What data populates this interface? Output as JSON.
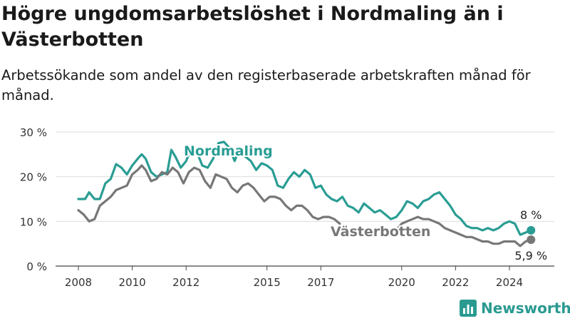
{
  "title": "Högre ungdomsarbetslöshet i Nordmaling än i Västerbotten",
  "subtitle": "Arbetssökande som andel av den registerbaserade arbetskraften månad för månad.",
  "logo_text": "Newsworthy",
  "chart_data": {
    "type": "line",
    "title": "Högre ungdomsarbetslöshet i Nordmaling än i Västerbotten",
    "subtitle": "Arbetssökande som andel av den registerbaserade arbetskraften månad för månad.",
    "xlabel": "",
    "ylabel": "",
    "ylim": [
      0,
      30
    ],
    "y_ticks": [
      {
        "value": 0,
        "label": "0 %"
      },
      {
        "value": 10,
        "label": "10 %"
      },
      {
        "value": 20,
        "label": "20 %"
      },
      {
        "value": 30,
        "label": "30 %"
      }
    ],
    "x_ticks": [
      2008,
      2010,
      2012,
      2015,
      2017,
      2020,
      2022,
      2024
    ],
    "grid": true,
    "colors": {
      "Nordmaling": "#2a9d94",
      "Västerbotten": "#777777"
    },
    "series": [
      {
        "name": "Nordmaling",
        "end_label": "8 %",
        "points": [
          [
            2008.0,
            15.0
          ],
          [
            2008.25,
            15.0
          ],
          [
            2008.4,
            16.5
          ],
          [
            2008.6,
            15.0
          ],
          [
            2008.8,
            15.0
          ],
          [
            2009.0,
            18.5
          ],
          [
            2009.2,
            19.5
          ],
          [
            2009.4,
            22.8
          ],
          [
            2009.6,
            22.0
          ],
          [
            2009.8,
            20.5
          ],
          [
            2010.0,
            22.5
          ],
          [
            2010.2,
            24.0
          ],
          [
            2010.35,
            25.0
          ],
          [
            2010.5,
            24.0
          ],
          [
            2010.7,
            21.0
          ],
          [
            2010.9,
            20.0
          ],
          [
            2011.1,
            20.5
          ],
          [
            2011.3,
            21.0
          ],
          [
            2011.45,
            26.0
          ],
          [
            2011.6,
            24.5
          ],
          [
            2011.8,
            22.0
          ],
          [
            2012.0,
            23.5
          ],
          [
            2012.2,
            26.5
          ],
          [
            2012.4,
            25.5
          ],
          [
            2012.6,
            22.5
          ],
          [
            2012.8,
            22.0
          ],
          [
            2013.0,
            24.0
          ],
          [
            2013.2,
            27.5
          ],
          [
            2013.4,
            27.8
          ],
          [
            2013.6,
            26.5
          ],
          [
            2013.8,
            23.5
          ],
          [
            2014.0,
            26.5
          ],
          [
            2014.2,
            24.5
          ],
          [
            2014.4,
            23.5
          ],
          [
            2014.6,
            21.5
          ],
          [
            2014.8,
            23.0
          ],
          [
            2015.0,
            22.5
          ],
          [
            2015.2,
            21.5
          ],
          [
            2015.4,
            18.0
          ],
          [
            2015.6,
            17.5
          ],
          [
            2015.8,
            19.5
          ],
          [
            2016.0,
            21.0
          ],
          [
            2016.2,
            20.0
          ],
          [
            2016.4,
            21.5
          ],
          [
            2016.6,
            20.5
          ],
          [
            2016.8,
            17.5
          ],
          [
            2017.0,
            18.0
          ],
          [
            2017.2,
            16.0
          ],
          [
            2017.4,
            15.0
          ],
          [
            2017.6,
            14.5
          ],
          [
            2017.8,
            15.5
          ],
          [
            2018.0,
            13.5
          ],
          [
            2018.2,
            13.0
          ],
          [
            2018.4,
            12.0
          ],
          [
            2018.6,
            14.0
          ],
          [
            2018.8,
            13.0
          ],
          [
            2019.0,
            12.0
          ],
          [
            2019.2,
            12.5
          ],
          [
            2019.4,
            11.5
          ],
          [
            2019.6,
            10.5
          ],
          [
            2019.8,
            11.0
          ],
          [
            2020.0,
            12.5
          ],
          [
            2020.2,
            14.5
          ],
          [
            2020.4,
            14.0
          ],
          [
            2020.6,
            13.0
          ],
          [
            2020.8,
            14.5
          ],
          [
            2021.0,
            15.0
          ],
          [
            2021.2,
            16.0
          ],
          [
            2021.4,
            16.5
          ],
          [
            2021.6,
            15.0
          ],
          [
            2021.8,
            13.5
          ],
          [
            2022.0,
            11.5
          ],
          [
            2022.2,
            10.5
          ],
          [
            2022.4,
            9.0
          ],
          [
            2022.6,
            8.5
          ],
          [
            2022.8,
            8.5
          ],
          [
            2023.0,
            8.0
          ],
          [
            2023.2,
            8.5
          ],
          [
            2023.4,
            8.0
          ],
          [
            2023.6,
            8.5
          ],
          [
            2023.8,
            9.5
          ],
          [
            2024.0,
            10.0
          ],
          [
            2024.2,
            9.5
          ],
          [
            2024.4,
            7.0
          ],
          [
            2024.6,
            7.5
          ],
          [
            2024.8,
            8.0
          ]
        ]
      },
      {
        "name": "Västerbotten",
        "end_label": "5,9 %",
        "points": [
          [
            2008.0,
            12.5
          ],
          [
            2008.2,
            11.5
          ],
          [
            2008.4,
            10.0
          ],
          [
            2008.6,
            10.5
          ],
          [
            2008.8,
            13.5
          ],
          [
            2009.0,
            14.5
          ],
          [
            2009.2,
            15.5
          ],
          [
            2009.4,
            17.0
          ],
          [
            2009.6,
            17.5
          ],
          [
            2009.8,
            18.0
          ],
          [
            2010.0,
            20.5
          ],
          [
            2010.2,
            21.5
          ],
          [
            2010.35,
            22.5
          ],
          [
            2010.5,
            21.5
          ],
          [
            2010.7,
            19.0
          ],
          [
            2010.9,
            19.5
          ],
          [
            2011.1,
            21.0
          ],
          [
            2011.3,
            20.5
          ],
          [
            2011.5,
            22.0
          ],
          [
            2011.7,
            21.0
          ],
          [
            2011.9,
            18.5
          ],
          [
            2012.1,
            21.0
          ],
          [
            2012.3,
            22.0
          ],
          [
            2012.5,
            21.5
          ],
          [
            2012.7,
            19.0
          ],
          [
            2012.9,
            17.5
          ],
          [
            2013.1,
            20.5
          ],
          [
            2013.3,
            20.0
          ],
          [
            2013.5,
            19.5
          ],
          [
            2013.7,
            17.5
          ],
          [
            2013.9,
            16.5
          ],
          [
            2014.1,
            18.0
          ],
          [
            2014.3,
            18.5
          ],
          [
            2014.5,
            17.5
          ],
          [
            2014.7,
            16.0
          ],
          [
            2014.9,
            14.5
          ],
          [
            2015.1,
            15.5
          ],
          [
            2015.3,
            15.5
          ],
          [
            2015.5,
            15.0
          ],
          [
            2015.7,
            13.5
          ],
          [
            2015.9,
            12.5
          ],
          [
            2016.1,
            13.5
          ],
          [
            2016.3,
            13.5
          ],
          [
            2016.5,
            12.5
          ],
          [
            2016.7,
            11.0
          ],
          [
            2016.9,
            10.5
          ],
          [
            2017.1,
            11.0
          ],
          [
            2017.3,
            11.0
          ],
          [
            2017.5,
            10.5
          ],
          [
            2017.7,
            9.5
          ],
          [
            2019.8,
            8.0
          ],
          [
            2020.0,
            9.5
          ],
          [
            2020.2,
            10.0
          ],
          [
            2020.4,
            10.5
          ],
          [
            2020.6,
            11.0
          ],
          [
            2020.8,
            10.5
          ],
          [
            2021.0,
            10.5
          ],
          [
            2021.2,
            10.0
          ],
          [
            2021.4,
            9.5
          ],
          [
            2021.6,
            8.5
          ],
          [
            2021.8,
            8.0
          ],
          [
            2022.0,
            7.5
          ],
          [
            2022.2,
            7.0
          ],
          [
            2022.4,
            6.5
          ],
          [
            2022.6,
            6.5
          ],
          [
            2022.8,
            6.0
          ],
          [
            2023.0,
            5.5
          ],
          [
            2023.2,
            5.5
          ],
          [
            2023.4,
            5.0
          ],
          [
            2023.6,
            5.0
          ],
          [
            2023.8,
            5.5
          ],
          [
            2024.0,
            5.5
          ],
          [
            2024.2,
            5.5
          ],
          [
            2024.4,
            4.5
          ],
          [
            2024.6,
            5.5
          ],
          [
            2024.8,
            5.9
          ]
        ]
      }
    ]
  }
}
